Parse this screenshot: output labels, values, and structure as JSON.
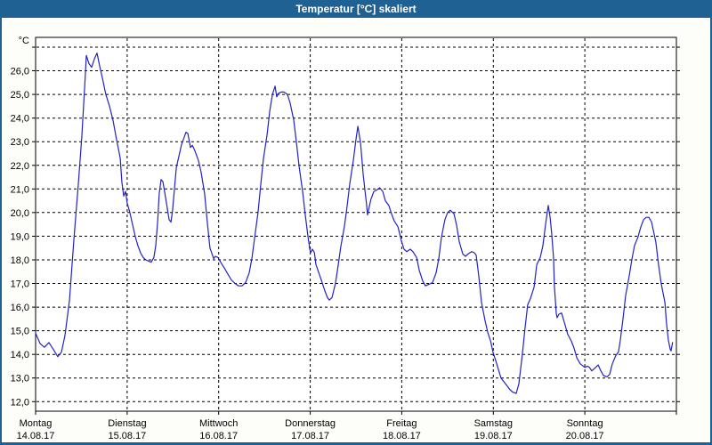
{
  "window": {
    "title": "Temperatur [°C] skaliert"
  },
  "colors": {
    "titlebar": "#1e6192",
    "frame": "#1e6192",
    "panel_background": "#fdfdfa",
    "plot_background": "#ffffff",
    "grid": "#000000",
    "axis": "#000000",
    "line": "#2222c4",
    "text": "#000000"
  },
  "chart_data": {
    "type": "line",
    "title": "Temperatur [°C] skaliert",
    "grid": "dashed",
    "legend": "none",
    "y_axis": {
      "unit_label": "°C",
      "tick_values": [
        12,
        13,
        14,
        15,
        16,
        17,
        18,
        19,
        20,
        21,
        22,
        23,
        24,
        25,
        26
      ],
      "tick_labels": [
        "12,0",
        "13,0",
        "14,0",
        "15,0",
        "16,0",
        "17,0",
        "18,0",
        "19,0",
        "20,0",
        "21,0",
        "22,0",
        "23,0",
        "24,0",
        "25,0",
        "26,0"
      ],
      "grid_values": [
        12,
        13,
        14,
        15,
        16,
        17,
        18,
        19,
        20,
        21,
        22,
        23,
        24,
        25,
        26,
        27
      ],
      "ylim": [
        11.6,
        27.4
      ]
    },
    "x_axis": {
      "unit": "hours_from_monday_00",
      "xlim_hours": [
        0,
        168
      ],
      "day_boundary_hours": [
        0,
        24,
        48,
        72,
        96,
        120,
        144,
        168
      ],
      "categories": [
        {
          "name": "Montag",
          "date": "14.08.17"
        },
        {
          "name": "Dienstag",
          "date": "15.08.17"
        },
        {
          "name": "Mittwoch",
          "date": "16.08.17"
        },
        {
          "name": "Donnerstag",
          "date": "17.08.17"
        },
        {
          "name": "Freitag",
          "date": "18.08.17"
        },
        {
          "name": "Samstag",
          "date": "19.08.17"
        },
        {
          "name": "Sonntag",
          "date": "20.08.17"
        }
      ]
    },
    "series": [
      {
        "name": "Temperatur",
        "unit": "°C",
        "points": [
          [
            0,
            14.9
          ],
          [
            1.2,
            14.45
          ],
          [
            2.3,
            14.3
          ],
          [
            3.5,
            14.5
          ],
          [
            4.7,
            14.2
          ],
          [
            5.8,
            13.9
          ],
          [
            6.8,
            14.1
          ],
          [
            7.7,
            14.8
          ],
          [
            8.9,
            16.3
          ],
          [
            10,
            18.8
          ],
          [
            11.2,
            21.2
          ],
          [
            12.1,
            23.2
          ],
          [
            13,
            25.7
          ],
          [
            13.3,
            26.65
          ],
          [
            14,
            26.3
          ],
          [
            14.7,
            26.15
          ],
          [
            15.4,
            26.5
          ],
          [
            16.1,
            26.75
          ],
          [
            16.8,
            26.2
          ],
          [
            17.5,
            25.7
          ],
          [
            18.4,
            25.0
          ],
          [
            19.4,
            24.5
          ],
          [
            20.3,
            23.9
          ],
          [
            21.2,
            23.1
          ],
          [
            22.2,
            22.3
          ],
          [
            22.6,
            21.3
          ],
          [
            23.1,
            20.7
          ],
          [
            23.6,
            20.9
          ],
          [
            24,
            20.4
          ],
          [
            24.7,
            20
          ],
          [
            25.4,
            19.5
          ],
          [
            26.1,
            19
          ],
          [
            26.8,
            18.6
          ],
          [
            27.5,
            18.3
          ],
          [
            28.2,
            18.1
          ],
          [
            28.9,
            18
          ],
          [
            29.6,
            17.95
          ],
          [
            30.3,
            17.9
          ],
          [
            31,
            18.1
          ],
          [
            31.5,
            18.6
          ],
          [
            32,
            19.6
          ],
          [
            32.4,
            20.8
          ],
          [
            32.9,
            21.4
          ],
          [
            33.4,
            21.3
          ],
          [
            33.8,
            20.9
          ],
          [
            34.5,
            20.2
          ],
          [
            35,
            19.7
          ],
          [
            35.5,
            19.6
          ],
          [
            35.9,
            20.1
          ],
          [
            36.4,
            21
          ],
          [
            36.9,
            21.9
          ],
          [
            37.6,
            22.4
          ],
          [
            38.3,
            22.9
          ],
          [
            39,
            23.2
          ],
          [
            39.4,
            23.4
          ],
          [
            39.9,
            23.35
          ],
          [
            40.4,
            22.95
          ],
          [
            40.6,
            22.75
          ],
          [
            41.1,
            22.85
          ],
          [
            41.8,
            22.6
          ],
          [
            42.7,
            22.2
          ],
          [
            43.4,
            21.7
          ],
          [
            44.3,
            20.8
          ],
          [
            45,
            19.6
          ],
          [
            45.7,
            18.5
          ],
          [
            46.7,
            18.05
          ],
          [
            47.1,
            18.15
          ],
          [
            47.8,
            18.1
          ],
          [
            48.5,
            17.9
          ],
          [
            49.5,
            17.65
          ],
          [
            50.4,
            17.4
          ],
          [
            51.3,
            17.15
          ],
          [
            52.3,
            17
          ],
          [
            53.2,
            16.9
          ],
          [
            54.1,
            16.9
          ],
          [
            55.1,
            17.05
          ],
          [
            56,
            17.45
          ],
          [
            56.7,
            18.05
          ],
          [
            57.4,
            18.9
          ],
          [
            58.3,
            20
          ],
          [
            59,
            21.15
          ],
          [
            59.7,
            22.25
          ],
          [
            60.7,
            23.3
          ],
          [
            61.4,
            24.3
          ],
          [
            62.1,
            25
          ],
          [
            62.8,
            25.35
          ],
          [
            63.2,
            24.9
          ],
          [
            63.7,
            25.05
          ],
          [
            64.4,
            25.1
          ],
          [
            65.1,
            25.1
          ],
          [
            66,
            25
          ],
          [
            66.7,
            24.65
          ],
          [
            67.7,
            23.9
          ],
          [
            68.4,
            22.95
          ],
          [
            69.1,
            21.95
          ],
          [
            70,
            20.9
          ],
          [
            70.7,
            19.9
          ],
          [
            71.4,
            19
          ],
          [
            71.9,
            18.45
          ],
          [
            72.1,
            18.3
          ],
          [
            72.6,
            18.45
          ],
          [
            73.1,
            18.3
          ],
          [
            73.5,
            17.8
          ],
          [
            74.7,
            17.25
          ],
          [
            75.8,
            16.7
          ],
          [
            76.5,
            16.4
          ],
          [
            77,
            16.3
          ],
          [
            77.7,
            16.4
          ],
          [
            78.6,
            17
          ],
          [
            79.3,
            17.75
          ],
          [
            80,
            18.55
          ],
          [
            81,
            19.45
          ],
          [
            81.7,
            20.3
          ],
          [
            82.4,
            21.25
          ],
          [
            83.3,
            22.2
          ],
          [
            84,
            23.1
          ],
          [
            84.5,
            23.65
          ],
          [
            85.2,
            22.95
          ],
          [
            85.9,
            21.6
          ],
          [
            86.8,
            20.3
          ],
          [
            87,
            19.9
          ],
          [
            87.9,
            20.55
          ],
          [
            88.7,
            20.9
          ],
          [
            89.4,
            20.95
          ],
          [
            90.2,
            21.05
          ],
          [
            91,
            20.9
          ],
          [
            91.7,
            20.5
          ],
          [
            92.6,
            20.3
          ],
          [
            93.3,
            19.95
          ],
          [
            94,
            19.65
          ],
          [
            95,
            19.4
          ],
          [
            95.7,
            18.95
          ],
          [
            95.9,
            18.8
          ],
          [
            96.6,
            18.45
          ],
          [
            97.3,
            18.35
          ],
          [
            98.2,
            18.45
          ],
          [
            98.9,
            18.35
          ],
          [
            99.9,
            18.1
          ],
          [
            100.6,
            17.55
          ],
          [
            101.5,
            17.1
          ],
          [
            102.2,
            16.9
          ],
          [
            102.9,
            16.95
          ],
          [
            103.6,
            17
          ],
          [
            104.1,
            17.05
          ],
          [
            105,
            17.45
          ],
          [
            105.7,
            18.05
          ],
          [
            106.4,
            18.95
          ],
          [
            107.3,
            19.7
          ],
          [
            108,
            20
          ],
          [
            108.7,
            20.1
          ],
          [
            109.7,
            19.95
          ],
          [
            110.4,
            19.45
          ],
          [
            111.1,
            18.75
          ],
          [
            112,
            18.25
          ],
          [
            112.7,
            18.15
          ],
          [
            113.4,
            18.25
          ],
          [
            114.3,
            18.35
          ],
          [
            115,
            18.3
          ],
          [
            115.5,
            18.2
          ],
          [
            116.2,
            17.3
          ],
          [
            116.9,
            16.2
          ],
          [
            117.8,
            15.45
          ],
          [
            118.5,
            14.95
          ],
          [
            119.3,
            14.55
          ],
          [
            119.9,
            14.1
          ],
          [
            120.9,
            13.6
          ],
          [
            122,
            13
          ],
          [
            123.2,
            12.75
          ],
          [
            124.4,
            12.5
          ],
          [
            125.1,
            12.4
          ],
          [
            126,
            12.35
          ],
          [
            126.7,
            12.75
          ],
          [
            127.6,
            14
          ],
          [
            128.3,
            15.1
          ],
          [
            129,
            16.1
          ],
          [
            129.7,
            16.35
          ],
          [
            130.7,
            16.85
          ],
          [
            131.4,
            17.8
          ],
          [
            132.3,
            18.1
          ],
          [
            133,
            18.6
          ],
          [
            133.7,
            19.5
          ],
          [
            134.4,
            20.3
          ],
          [
            134.9,
            19.8
          ],
          [
            135.3,
            19.1
          ],
          [
            135.8,
            18.05
          ],
          [
            136,
            16.9
          ],
          [
            136.5,
            15.75
          ],
          [
            136.7,
            15.55
          ],
          [
            137.2,
            15.7
          ],
          [
            137.9,
            15.75
          ],
          [
            138.8,
            15.25
          ],
          [
            139.5,
            14.85
          ],
          [
            140.5,
            14.55
          ],
          [
            141.2,
            14.25
          ],
          [
            141.9,
            13.85
          ],
          [
            142.8,
            13.6
          ],
          [
            144,
            13.45
          ],
          [
            144.7,
            13.5
          ],
          [
            145.2,
            13.45
          ],
          [
            145.8,
            13.3
          ],
          [
            146.5,
            13.4
          ],
          [
            147.5,
            13.55
          ],
          [
            148.2,
            13.3
          ],
          [
            148.9,
            13.1
          ],
          [
            149.8,
            13.05
          ],
          [
            150.5,
            13.15
          ],
          [
            151.2,
            13.6
          ],
          [
            152.1,
            13.95
          ],
          [
            152.8,
            14.1
          ],
          [
            153.3,
            14.6
          ],
          [
            154,
            15.5
          ],
          [
            154.7,
            16.5
          ],
          [
            155.6,
            17.3
          ],
          [
            156.3,
            18
          ],
          [
            157,
            18.6
          ],
          [
            157.9,
            18.95
          ],
          [
            158.7,
            19.4
          ],
          [
            159.4,
            19.7
          ],
          [
            160.1,
            19.8
          ],
          [
            160.8,
            19.8
          ],
          [
            161.5,
            19.6
          ],
          [
            162.6,
            18.75
          ],
          [
            163.3,
            17.8
          ],
          [
            164,
            17
          ],
          [
            165,
            16.2
          ],
          [
            165.4,
            15.3
          ],
          [
            165.9,
            14.6
          ],
          [
            166.4,
            14.2
          ],
          [
            166.6,
            14.15
          ],
          [
            167,
            14.5
          ]
        ]
      }
    ]
  }
}
